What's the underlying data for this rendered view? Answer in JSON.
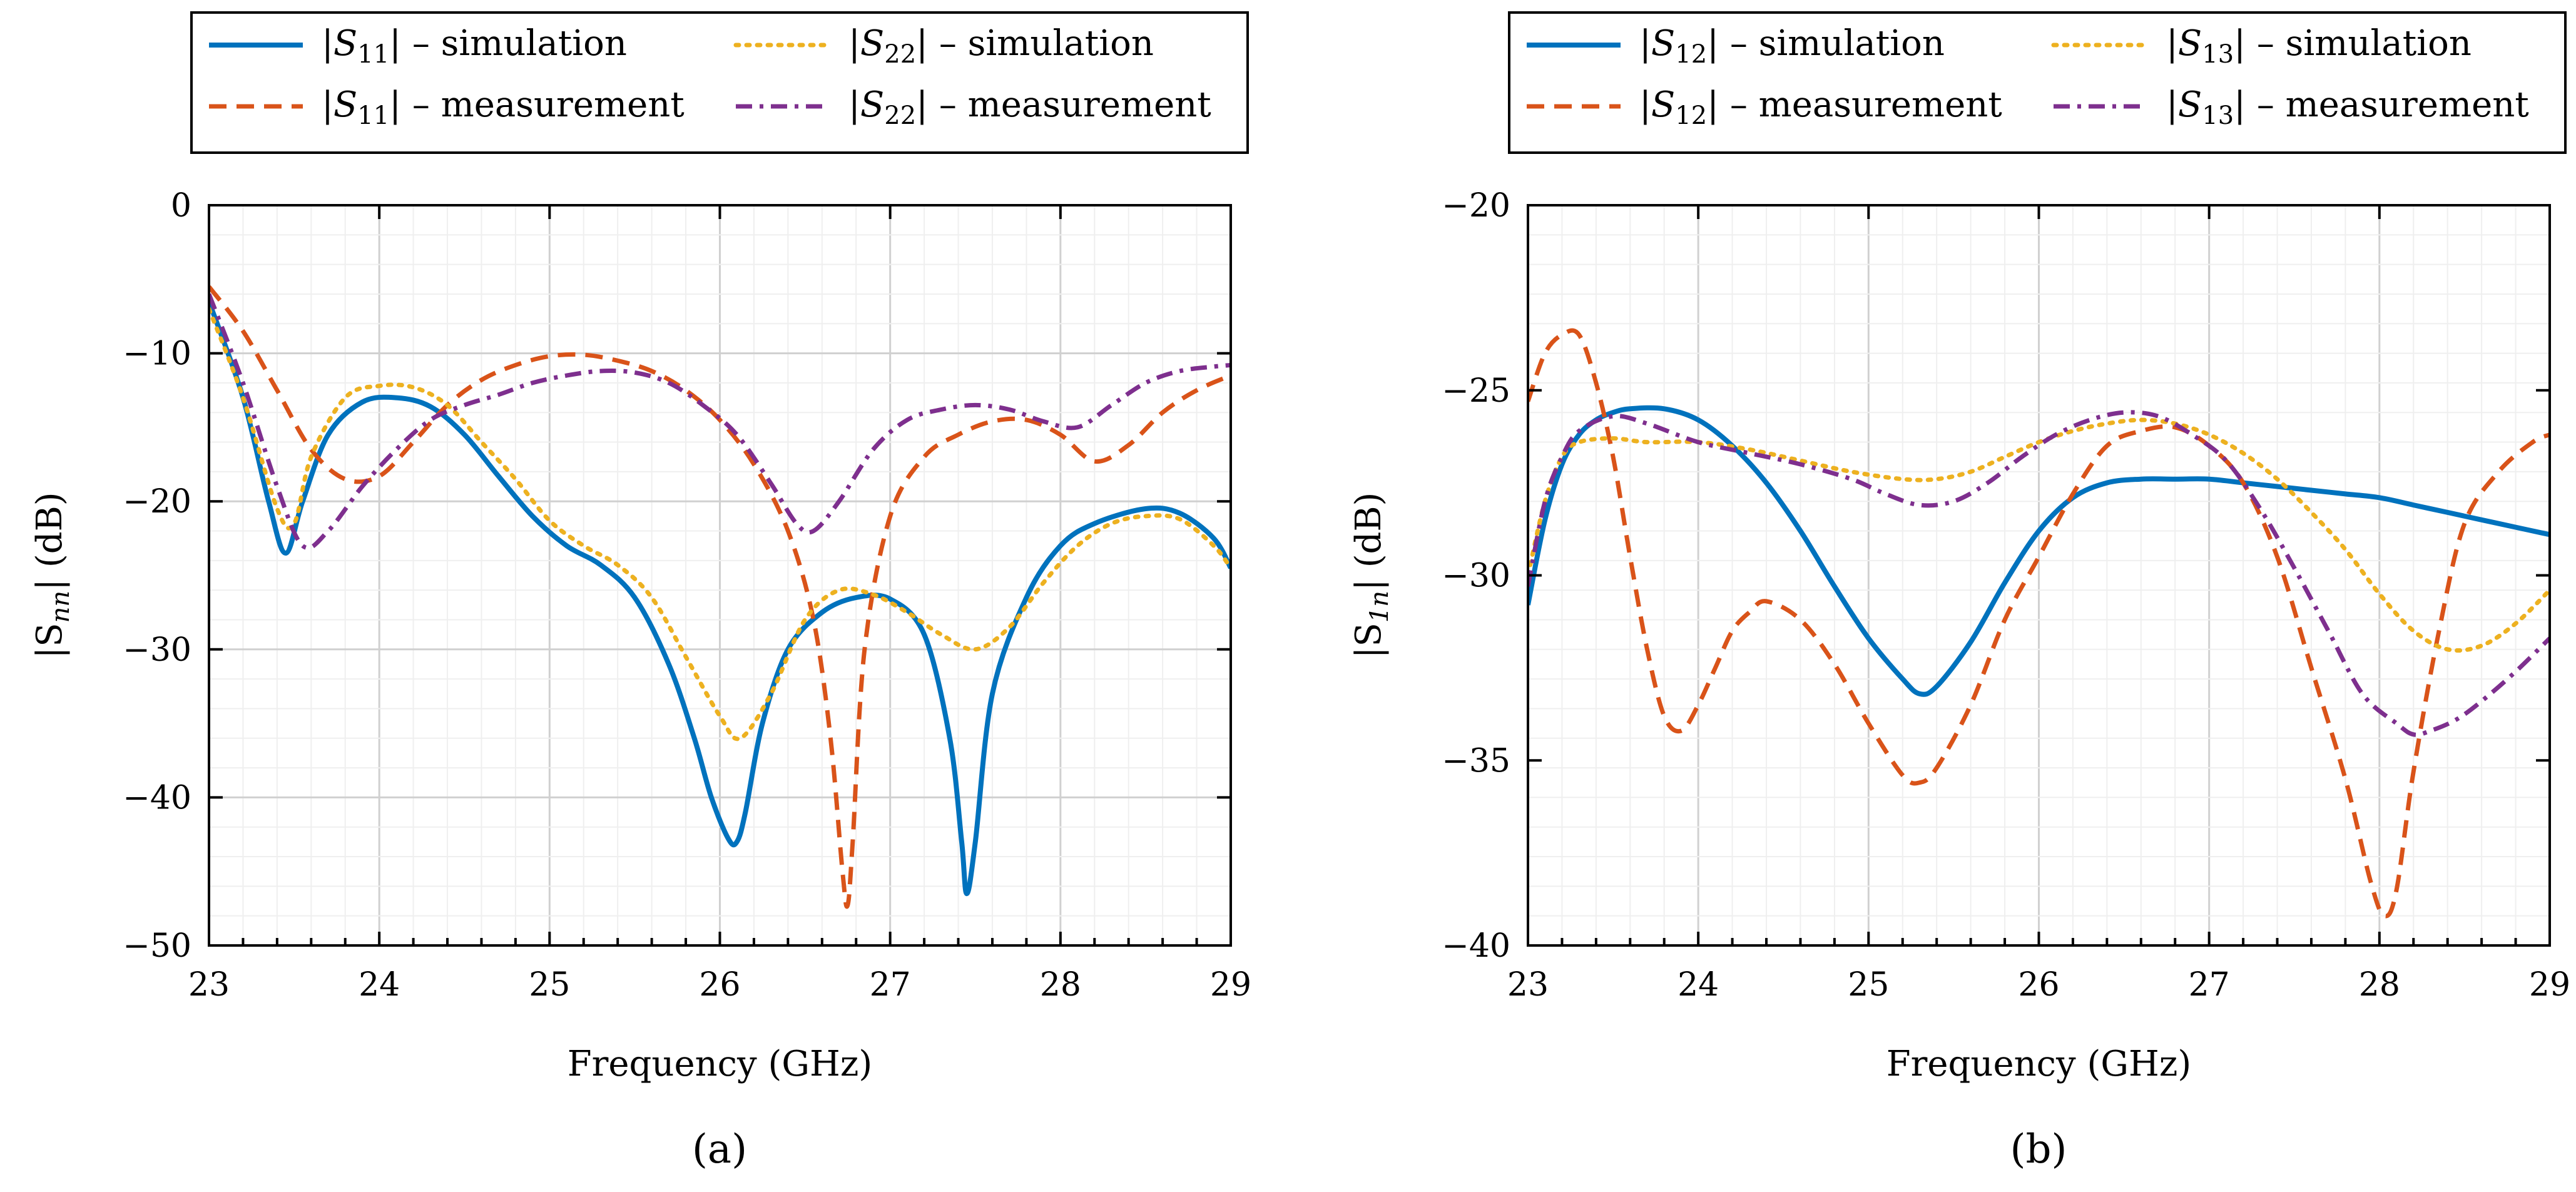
{
  "colors": {
    "sim": "#0072bd",
    "meas": "#d95319",
    "sim2": "#edb120",
    "meas2": "#7e2f8e"
  },
  "chart_data": [
    {
      "id": "a",
      "type": "line",
      "caption": "(a)",
      "xlabel": "Frequency (GHz)",
      "ylabel": "|S_nn| (dB)",
      "ylabel_main": "|S",
      "ylabel_sub": "nn",
      "ylabel_tail": "| (dB)",
      "xlim": [
        23,
        29
      ],
      "ylim": [
        -50,
        0
      ],
      "xticks": [
        23,
        24,
        25,
        26,
        27,
        28,
        29
      ],
      "yticks": [
        0,
        -10,
        -20,
        -30,
        -40,
        -50
      ],
      "ytick_labels": [
        "0",
        "−10",
        "−20",
        "−30",
        "−40",
        "−50"
      ],
      "grid": true,
      "legend_position": "top",
      "series": [
        {
          "name": "|S11| – simulation",
          "label_sub": "11",
          "label_tail": "– simulation",
          "style": "solid",
          "color_key": "sim",
          "x": [
            23.0,
            23.2,
            23.35,
            23.45,
            23.55,
            23.7,
            23.9,
            24.1,
            24.3,
            24.5,
            24.7,
            24.9,
            25.1,
            25.3,
            25.5,
            25.7,
            25.85,
            25.95,
            26.05,
            26.1,
            26.15,
            26.25,
            26.4,
            26.6,
            26.8,
            27.0,
            27.2,
            27.35,
            27.42,
            27.45,
            27.5,
            27.6,
            27.8,
            28.0,
            28.2,
            28.5,
            28.7,
            28.9,
            29.0
          ],
          "y": [
            -6.5,
            -13,
            -20,
            -23.5,
            -20,
            -15.5,
            -13.3,
            -13,
            -13.6,
            -15.5,
            -18.3,
            -21,
            -23,
            -24.3,
            -26.5,
            -31,
            -36,
            -40,
            -42.8,
            -43,
            -41,
            -35,
            -30,
            -27.5,
            -26.5,
            -26.6,
            -29,
            -36,
            -43,
            -46.5,
            -43,
            -33,
            -26.5,
            -23,
            -21.5,
            -20.5,
            -20.8,
            -22.5,
            -24.5
          ]
        },
        {
          "name": "|S11| – measurement",
          "label_sub": "11",
          "label_tail": "– measurement",
          "style": "dashed",
          "color_key": "meas",
          "x": [
            23.0,
            23.2,
            23.4,
            23.6,
            23.8,
            24.0,
            24.2,
            24.4,
            24.6,
            24.8,
            25.0,
            25.2,
            25.4,
            25.6,
            25.8,
            26.0,
            26.2,
            26.4,
            26.55,
            26.65,
            26.72,
            26.75,
            26.78,
            26.85,
            27.0,
            27.2,
            27.4,
            27.6,
            27.8,
            28.0,
            28.2,
            28.4,
            28.6,
            28.8,
            29.0
          ],
          "y": [
            -5.5,
            -8.5,
            -12.5,
            -16.5,
            -18.5,
            -18.3,
            -16,
            -13.5,
            -11.8,
            -10.8,
            -10.2,
            -10.1,
            -10.5,
            -11.2,
            -12.5,
            -14.5,
            -17.5,
            -22,
            -28,
            -36,
            -45,
            -47.3,
            -43,
            -30,
            -21,
            -17,
            -15.5,
            -14.6,
            -14.5,
            -15.5,
            -17.3,
            -16.2,
            -14,
            -12.5,
            -11.5
          ]
        },
        {
          "name": "|S22| – simulation",
          "label_sub": "22",
          "label_tail": "– simulation",
          "style": "dotted",
          "color_key": "sim2",
          "x": [
            23.0,
            23.2,
            23.4,
            23.5,
            23.6,
            23.8,
            24.0,
            24.2,
            24.4,
            24.6,
            24.8,
            25.0,
            25.2,
            25.4,
            25.6,
            25.8,
            26.0,
            26.12,
            26.3,
            26.5,
            26.7,
            26.9,
            27.1,
            27.3,
            27.5,
            27.7,
            27.9,
            28.1,
            28.3,
            28.5,
            28.7,
            28.9,
            29.0
          ],
          "y": [
            -7,
            -13,
            -20.5,
            -21.5,
            -17,
            -13,
            -12.2,
            -12.3,
            -13.5,
            -16,
            -18.5,
            -21.3,
            -23,
            -24.3,
            -26.5,
            -30.5,
            -34.5,
            -36,
            -33,
            -28,
            -26,
            -26.3,
            -27.5,
            -29,
            -30,
            -28.5,
            -25.5,
            -23,
            -21.5,
            -21,
            -21.2,
            -23,
            -24.5
          ]
        },
        {
          "name": "|S22| – measurement",
          "label_sub": "22",
          "label_tail": "– measurement",
          "style": "dashdot",
          "color_key": "meas2",
          "x": [
            23.0,
            23.2,
            23.4,
            23.55,
            23.7,
            23.9,
            24.1,
            24.3,
            24.5,
            24.7,
            24.9,
            25.1,
            25.3,
            25.5,
            25.7,
            25.9,
            26.1,
            26.3,
            26.45,
            26.55,
            26.7,
            26.9,
            27.1,
            27.3,
            27.5,
            27.7,
            27.9,
            28.1,
            28.3,
            28.5,
            28.7,
            28.9,
            29.0
          ],
          "y": [
            -6,
            -12,
            -19,
            -23,
            -22,
            -19,
            -16.5,
            -14.5,
            -13.5,
            -12.8,
            -12,
            -11.5,
            -11.2,
            -11.3,
            -12,
            -13.5,
            -15.5,
            -18.8,
            -21.5,
            -22,
            -20,
            -16.5,
            -14.5,
            -13.8,
            -13.5,
            -13.8,
            -14.6,
            -15,
            -13.5,
            -12,
            -11.2,
            -10.9,
            -10.8
          ]
        }
      ]
    },
    {
      "id": "b",
      "type": "line",
      "caption": "(b)",
      "xlabel": "Frequency (GHz)",
      "ylabel": "|S_1n| (dB)",
      "ylabel_main": "|S",
      "ylabel_sub": "1n",
      "ylabel_tail": "| (dB)",
      "xlim": [
        23,
        29
      ],
      "ylim": [
        -40,
        -20
      ],
      "xticks": [
        23,
        24,
        25,
        26,
        27,
        28,
        29
      ],
      "yticks": [
        -20,
        -25,
        -30,
        -35,
        -40
      ],
      "ytick_labels": [
        "−20",
        "−25",
        "−30",
        "−35",
        "−40"
      ],
      "grid": true,
      "legend_position": "top",
      "series": [
        {
          "name": "|S12| – simulation",
          "label_sub": "12",
          "label_tail": "– simulation",
          "style": "solid",
          "color_key": "sim",
          "x": [
            23.0,
            23.1,
            23.2,
            23.3,
            23.4,
            23.5,
            23.6,
            23.8,
            24.0,
            24.2,
            24.4,
            24.6,
            24.8,
            25.0,
            25.2,
            25.3,
            25.4,
            25.6,
            25.8,
            26.0,
            26.2,
            26.4,
            26.6,
            26.8,
            27.0,
            27.2,
            27.4,
            27.6,
            27.8,
            28.0,
            28.2,
            28.4,
            28.6,
            28.8,
            29.0
          ],
          "y": [
            -30.8,
            -28.5,
            -27,
            -26.2,
            -25.8,
            -25.6,
            -25.5,
            -25.5,
            -25.8,
            -26.5,
            -27.5,
            -28.8,
            -30.3,
            -31.7,
            -32.8,
            -33.2,
            -33,
            -31.8,
            -30.2,
            -28.8,
            -27.9,
            -27.5,
            -27.4,
            -27.4,
            -27.4,
            -27.5,
            -27.6,
            -27.7,
            -27.8,
            -27.9,
            -28.1,
            -28.3,
            -28.5,
            -28.7,
            -28.9
          ]
        },
        {
          "name": "|S12| – measurement",
          "label_sub": "12",
          "label_tail": "– measurement",
          "style": "dashed",
          "color_key": "meas",
          "x": [
            23.0,
            23.1,
            23.2,
            23.3,
            23.4,
            23.5,
            23.6,
            23.7,
            23.8,
            23.9,
            24.0,
            24.1,
            24.2,
            24.3,
            24.4,
            24.6,
            24.8,
            25.0,
            25.2,
            25.3,
            25.4,
            25.6,
            25.8,
            26.0,
            26.2,
            26.4,
            26.6,
            26.8,
            27.0,
            27.2,
            27.4,
            27.6,
            27.8,
            27.95,
            28.03,
            28.1,
            28.2,
            28.35,
            28.5,
            28.7,
            28.9,
            29.0
          ],
          "y": [
            -25.3,
            -24,
            -23.5,
            -23.5,
            -24.8,
            -26.8,
            -29.5,
            -32,
            -33.8,
            -34.2,
            -33.5,
            -32.5,
            -31.5,
            -31,
            -30.7,
            -31.2,
            -32.4,
            -34,
            -35.4,
            -35.6,
            -35.2,
            -33.5,
            -31.2,
            -29.5,
            -27.8,
            -26.5,
            -26.1,
            -26,
            -26.5,
            -27.5,
            -29.5,
            -32.5,
            -35.5,
            -38.3,
            -39.2,
            -38.5,
            -35.3,
            -31.5,
            -28.6,
            -27.2,
            -26.4,
            -26.2
          ]
        },
        {
          "name": "|S13| – simulation",
          "label_sub": "13",
          "label_tail": "– simulation",
          "style": "dotted",
          "color_key": "sim2",
          "x": [
            23.0,
            23.1,
            23.2,
            23.3,
            23.5,
            23.7,
            24.0,
            24.3,
            24.6,
            24.9,
            25.2,
            25.4,
            25.6,
            25.8,
            26.0,
            26.2,
            26.4,
            26.6,
            26.8,
            27.0,
            27.2,
            27.4,
            27.6,
            27.8,
            28.0,
            28.2,
            28.4,
            28.6,
            28.8,
            29.0
          ],
          "y": [
            -30,
            -28,
            -26.8,
            -26.4,
            -26.3,
            -26.4,
            -26.4,
            -26.6,
            -26.9,
            -27.2,
            -27.4,
            -27.4,
            -27.2,
            -26.8,
            -26.4,
            -26.1,
            -25.9,
            -25.8,
            -25.9,
            -26.2,
            -26.7,
            -27.4,
            -28.3,
            -29.3,
            -30.5,
            -31.5,
            -32,
            -31.9,
            -31.3,
            -30.4
          ]
        },
        {
          "name": "|S13| – measurement",
          "label_sub": "13",
          "label_tail": "– measurement",
          "style": "dashdot",
          "color_key": "meas2",
          "x": [
            23.0,
            23.1,
            23.2,
            23.3,
            23.5,
            23.7,
            24.0,
            24.3,
            24.6,
            24.9,
            25.1,
            25.3,
            25.5,
            25.7,
            25.9,
            26.1,
            26.3,
            26.5,
            26.7,
            26.9,
            27.1,
            27.3,
            27.5,
            27.7,
            27.9,
            28.1,
            28.2,
            28.3,
            28.45,
            28.6,
            28.8,
            29.0
          ],
          "y": [
            -30.3,
            -28,
            -26.8,
            -26.1,
            -25.7,
            -25.9,
            -26.4,
            -26.7,
            -27,
            -27.4,
            -27.8,
            -28.1,
            -28,
            -27.5,
            -26.8,
            -26.2,
            -25.8,
            -25.6,
            -25.7,
            -26.2,
            -26.9,
            -28.2,
            -29.8,
            -31.5,
            -33.2,
            -34,
            -34.3,
            -34.2,
            -33.9,
            -33.4,
            -32.6,
            -31.7
          ]
        }
      ]
    }
  ]
}
